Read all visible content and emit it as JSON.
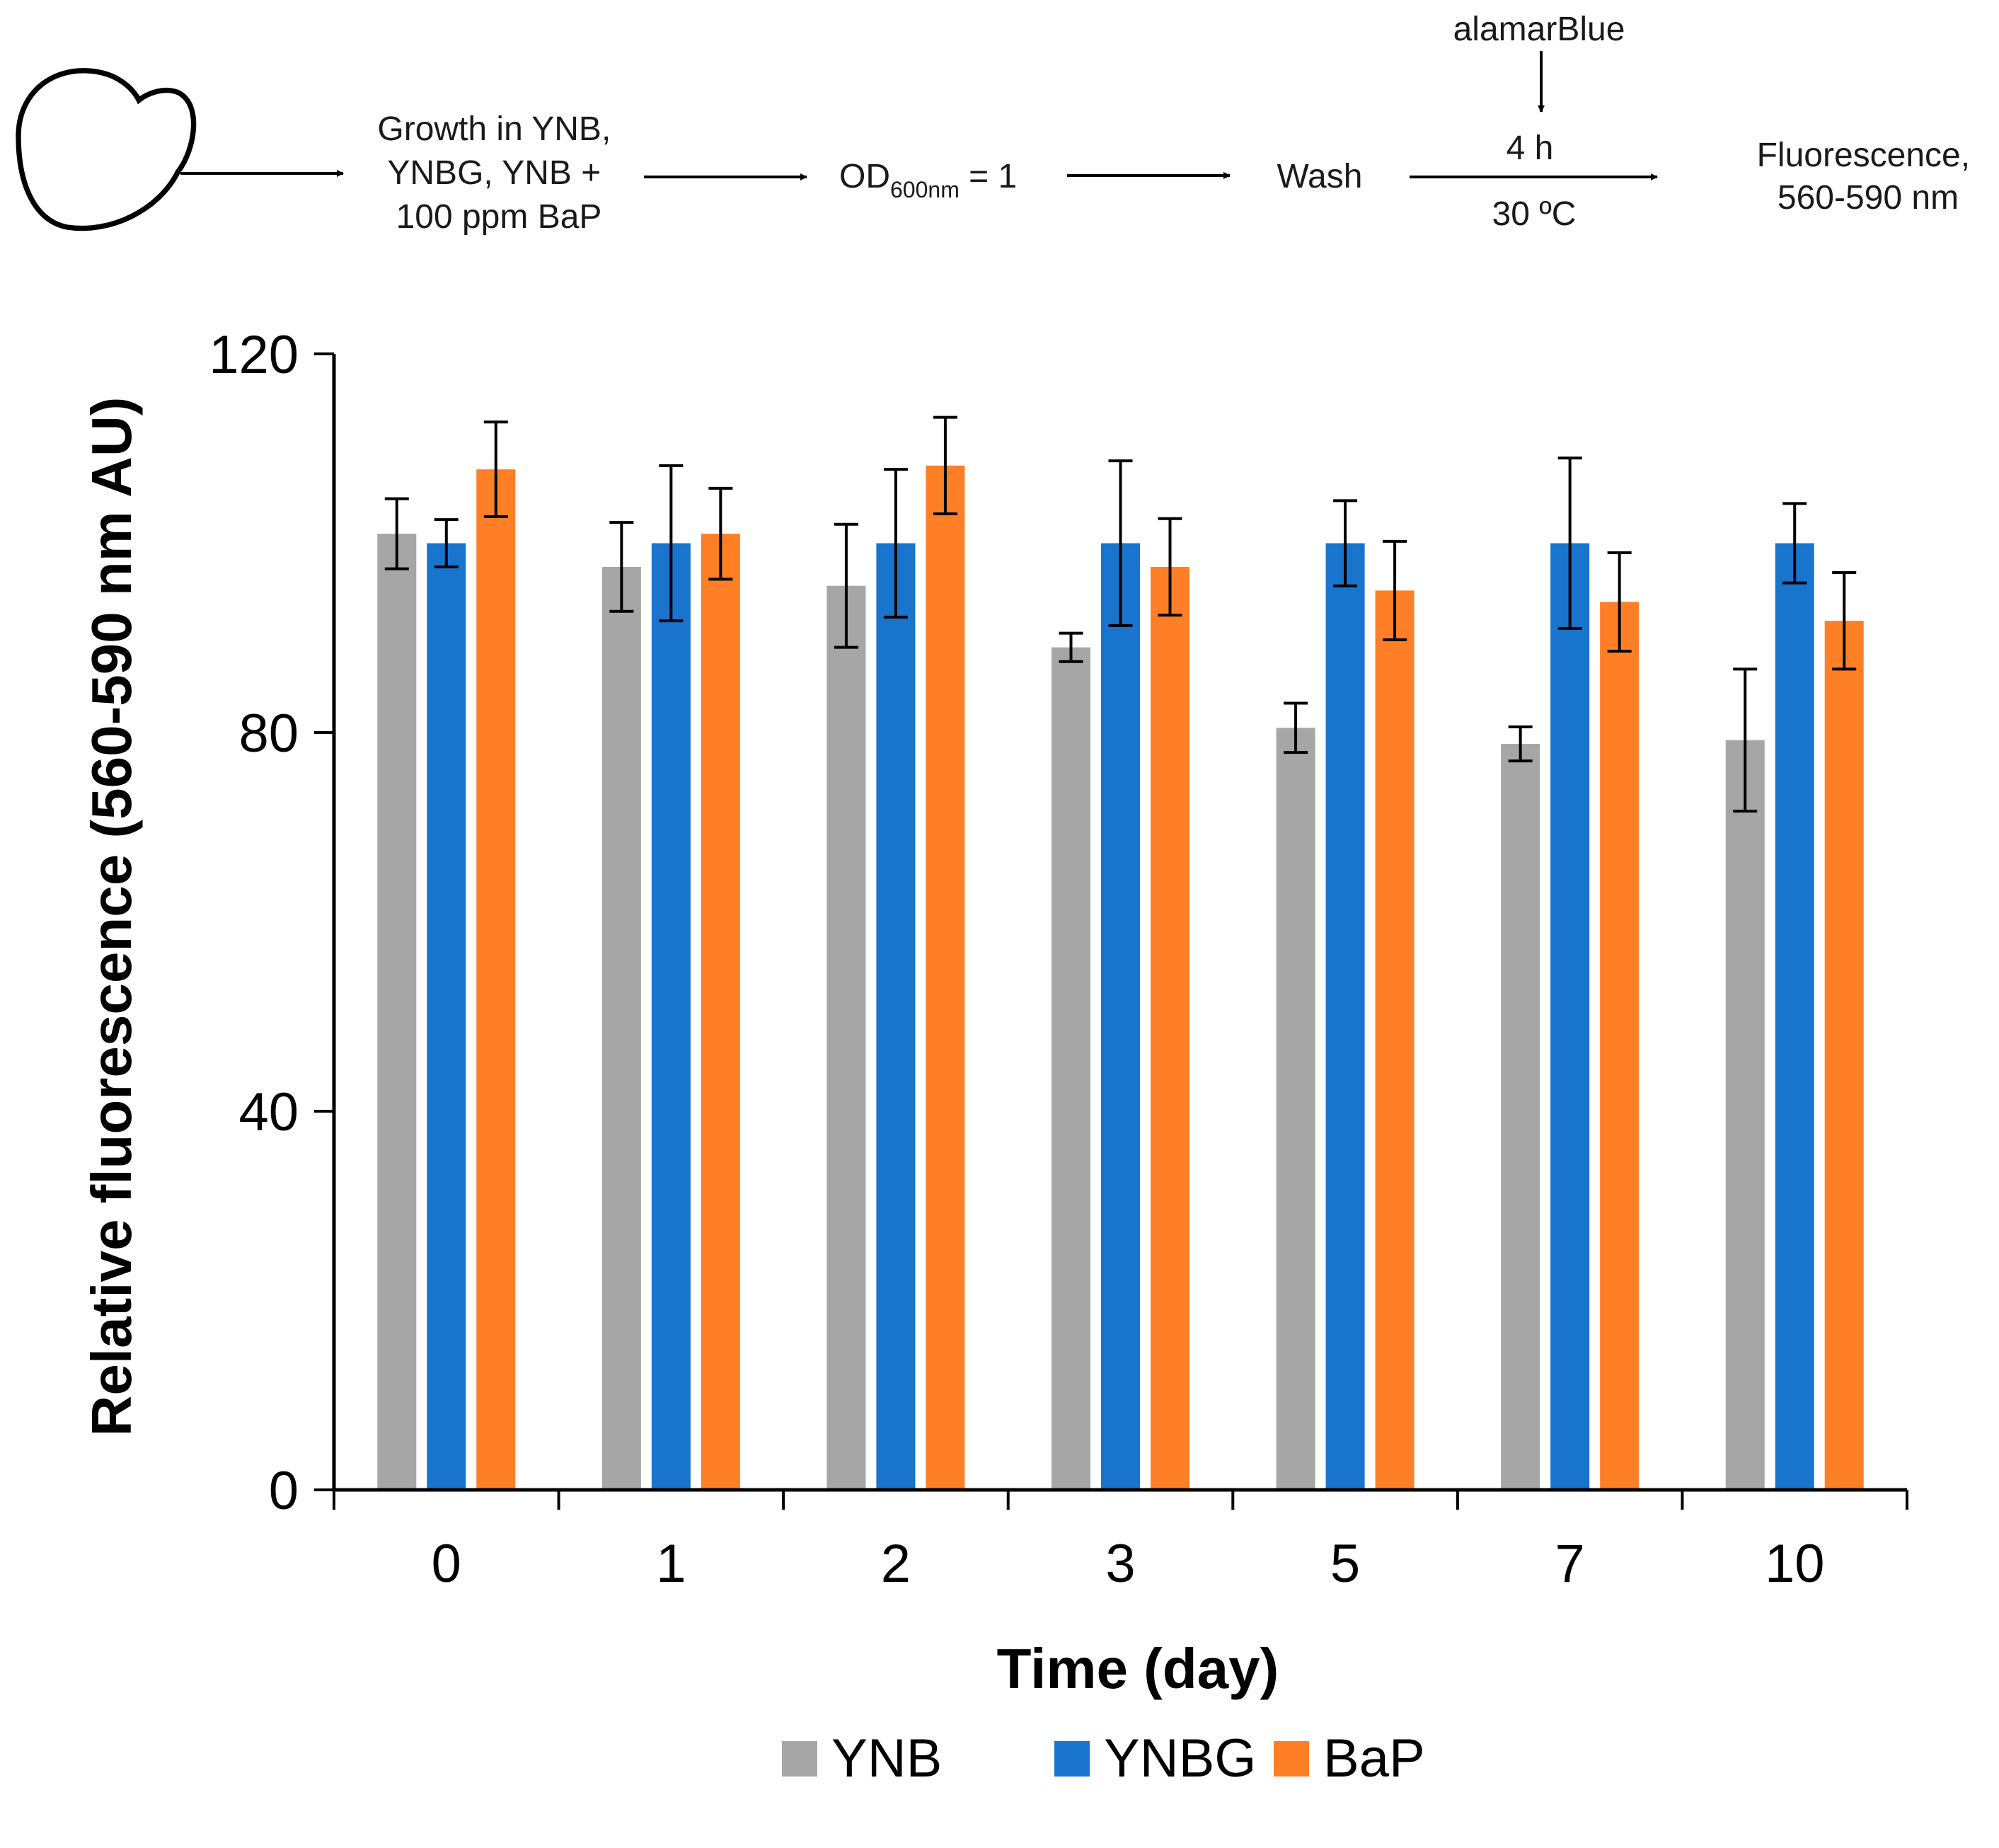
{
  "workflow": {
    "step_growth": [
      "Growth in YNB,",
      "YNBG, YNB +",
      "100 ppm BaP"
    ],
    "step_od": {
      "prefix": "OD",
      "subscript": "600nm",
      "suffix": " = 1"
    },
    "step_wash": "Wash",
    "reagent": "alamarBlue",
    "incubation_time": "4 h",
    "incubation_temp": "30 ºC",
    "step_readout": [
      "Fluorescence,",
      "560-590 nm"
    ]
  },
  "chart_data": {
    "type": "bar",
    "title": "",
    "xlabel": "Time (day)",
    "ylabel": "Relative fluorescence (560-590 nm AU)",
    "ylim": [
      0,
      120
    ],
    "yticks": [
      0,
      40,
      80,
      120
    ],
    "categories": [
      "0",
      "1",
      "2",
      "3",
      "5",
      "7",
      "10"
    ],
    "series": [
      {
        "name": "YNB",
        "color": "#a6a6a6",
        "values": [
          101,
          97.5,
          95.5,
          89,
          80.5,
          78.8,
          79.2
        ],
        "errors": [
          3.7,
          4.7,
          6.5,
          1.5,
          2.6,
          1.8,
          7.5
        ]
      },
      {
        "name": "YNBG",
        "color": "#1874cd",
        "values": [
          100,
          100,
          100,
          100,
          100,
          100,
          100
        ],
        "errors": [
          2.5,
          8.2,
          7.8,
          8.7,
          4.5,
          9.0,
          4.2
        ]
      },
      {
        "name": "BaP",
        "color": "#ff7f27",
        "values": [
          107.8,
          101,
          108.2,
          97.5,
          95,
          93.8,
          91.8
        ],
        "errors": [
          5.0,
          4.8,
          5.1,
          5.1,
          5.2,
          5.2,
          5.1
        ]
      }
    ],
    "legend": "bottom-center"
  }
}
